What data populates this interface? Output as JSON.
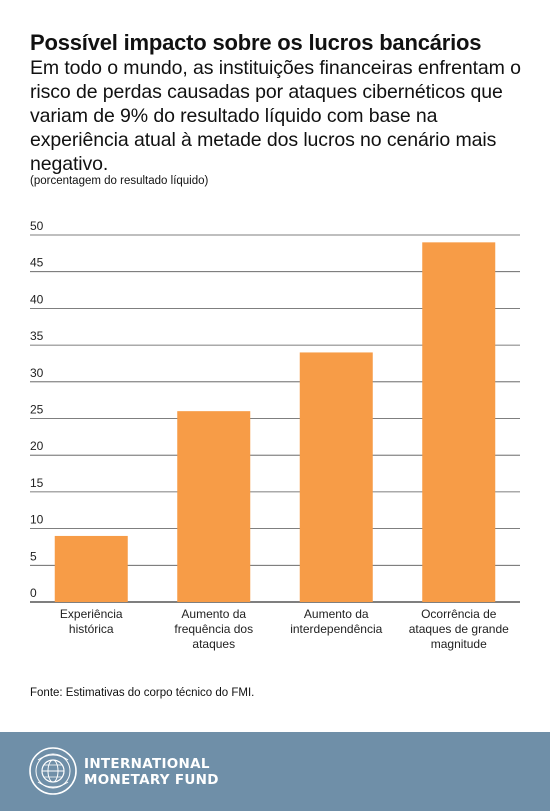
{
  "header": {
    "title": "Possível impacto sobre os lucros bancários",
    "subtitle": "Em todo o mundo, as instituições financeiras enfrentam o risco de perdas causadas por ataques cibernéticos que variam de 9% do resultado líquido com base na experiência atual à metade dos lucros no cenário mais negativo.",
    "unit_note": "(porcentagem do resultado líquido)"
  },
  "chart_data": {
    "type": "bar",
    "categories": [
      [
        "Experiência",
        "histórica"
      ],
      [
        "Aumento da",
        "frequência dos",
        "ataques"
      ],
      [
        "Aumento da",
        "interdependência"
      ],
      [
        "Ocorrência de",
        "ataques de grande",
        "magnitude"
      ]
    ],
    "values": [
      9,
      26,
      34,
      49
    ],
    "ylim": [
      0,
      50
    ],
    "yticks": [
      0,
      5,
      10,
      15,
      20,
      25,
      30,
      35,
      40,
      45,
      50
    ],
    "bar_color": "#f79c47",
    "grid": true,
    "xlabel": "",
    "ylabel": ""
  },
  "source": "Fonte: Estimativas do corpo técnico do FMI.",
  "footer": {
    "org_line1": "INTERNATIONAL",
    "org_line2": "MONETARY FUND",
    "logo_icon": "imf-seal-icon",
    "background": "#6f8fa8"
  }
}
